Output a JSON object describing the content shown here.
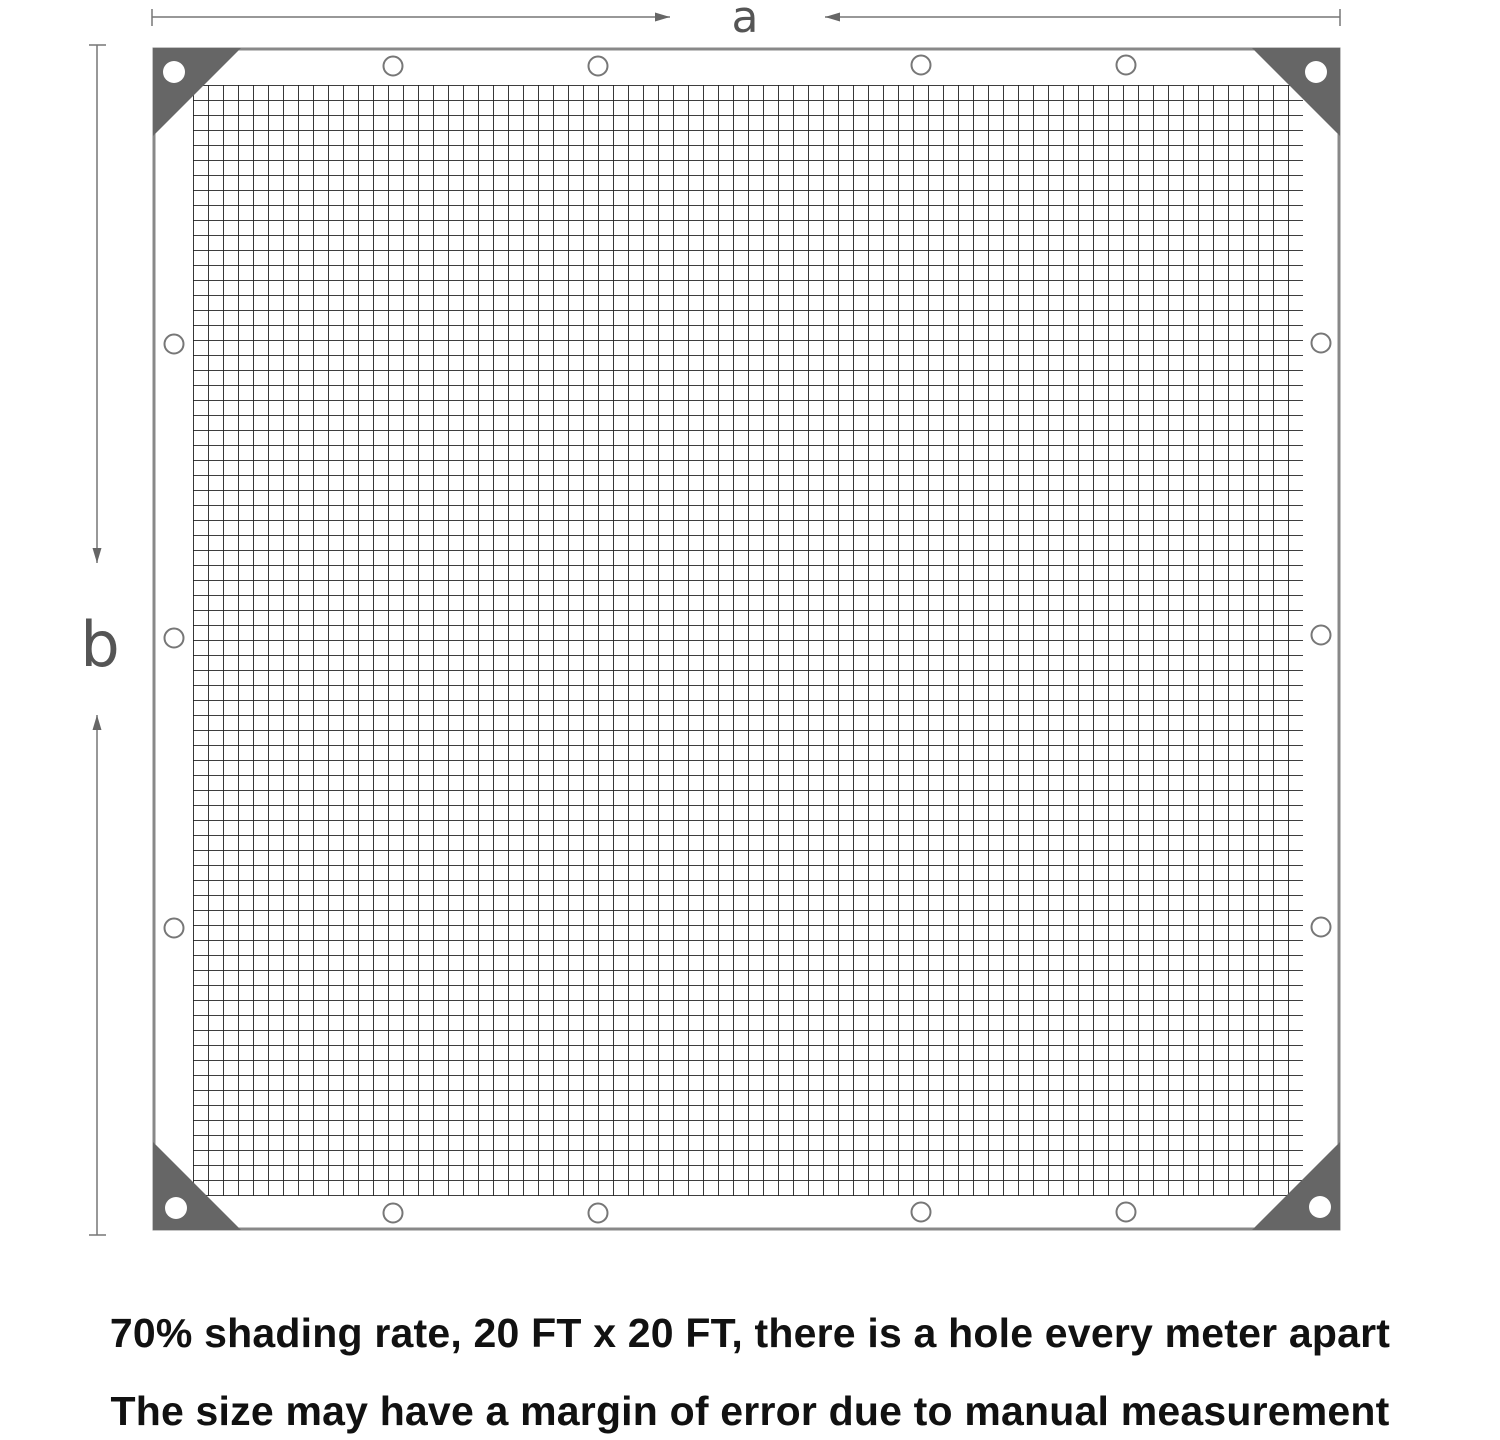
{
  "dimensions": {
    "width_label": "a",
    "height_label": "b"
  },
  "colors": {
    "corner": "#666666",
    "border": "#888888",
    "mesh": "#222222"
  },
  "caption": {
    "line1": "70% shading  rate, 20 FT x 20 FT, there is a hole every meter apart",
    "line2": "The size  may  have a margin of error due to manual measurement"
  }
}
